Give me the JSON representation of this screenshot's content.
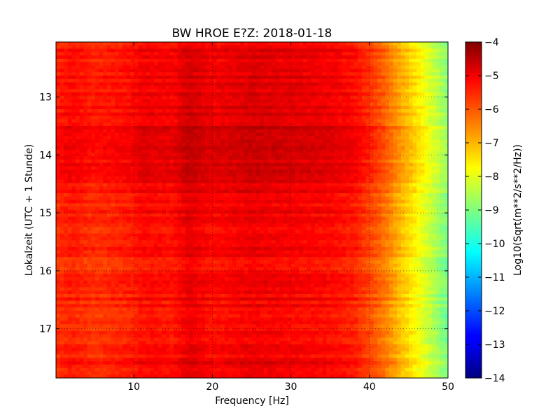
{
  "chart_data": {
    "type": "heatmap",
    "title": "BW HROE E?Z: 2018-01-18",
    "xlabel": "Frequency [Hz]",
    "ylabel": "Lokalzeit (UTC + 1 Stunde)",
    "xlim": [
      0.1,
      50
    ],
    "ylim": [
      12.05,
      17.85
    ],
    "y_inverted": true,
    "x_ticks": [
      10,
      20,
      30,
      40,
      50
    ],
    "x_tick_labels": [
      "10",
      "20",
      "30",
      "40",
      "50"
    ],
    "y_ticks": [
      13,
      14,
      15,
      16,
      17
    ],
    "y_tick_labels": [
      "13",
      "14",
      "15",
      "16",
      "17"
    ],
    "grid": true,
    "colormap": "jet",
    "colorbar": {
      "label": "Log10(Sqrt(m**2/s**2/Hz))",
      "range": [
        -14,
        -4
      ],
      "ticks": [
        -4,
        -5,
        -6,
        -7,
        -8,
        -9,
        -10,
        -11,
        -12,
        -13,
        -14
      ],
      "tick_labels": [
        "−4",
        "−5",
        "−6",
        "−7",
        "−8",
        "−9",
        "−10",
        "−11",
        "−12",
        "−13",
        "−14"
      ]
    },
    "frequency_profile": {
      "frequency_hz": [
        0.1,
        2,
        5,
        10,
        11,
        15,
        17,
        20,
        25,
        30,
        35,
        38,
        40,
        42,
        44,
        46,
        48,
        50
      ],
      "level": [
        -5.6,
        -5.4,
        -5.6,
        -5.4,
        -5.2,
        -5.3,
        -4.9,
        -5.2,
        -5.0,
        -5.1,
        -5.2,
        -5.4,
        -5.8,
        -6.3,
        -7.0,
        -7.6,
        -8.3,
        -9.0
      ]
    },
    "time_profile": {
      "time_h": [
        12.05,
        12.8,
        13.3,
        13.6,
        13.9,
        14.2,
        14.8,
        15.5,
        16.0,
        16.5,
        17.0,
        17.5,
        17.85
      ],
      "offset": [
        0.0,
        0.1,
        0.1,
        0.35,
        0.4,
        0.2,
        0.0,
        -0.1,
        -0.15,
        -0.1,
        -0.15,
        -0.05,
        0.0
      ]
    }
  }
}
